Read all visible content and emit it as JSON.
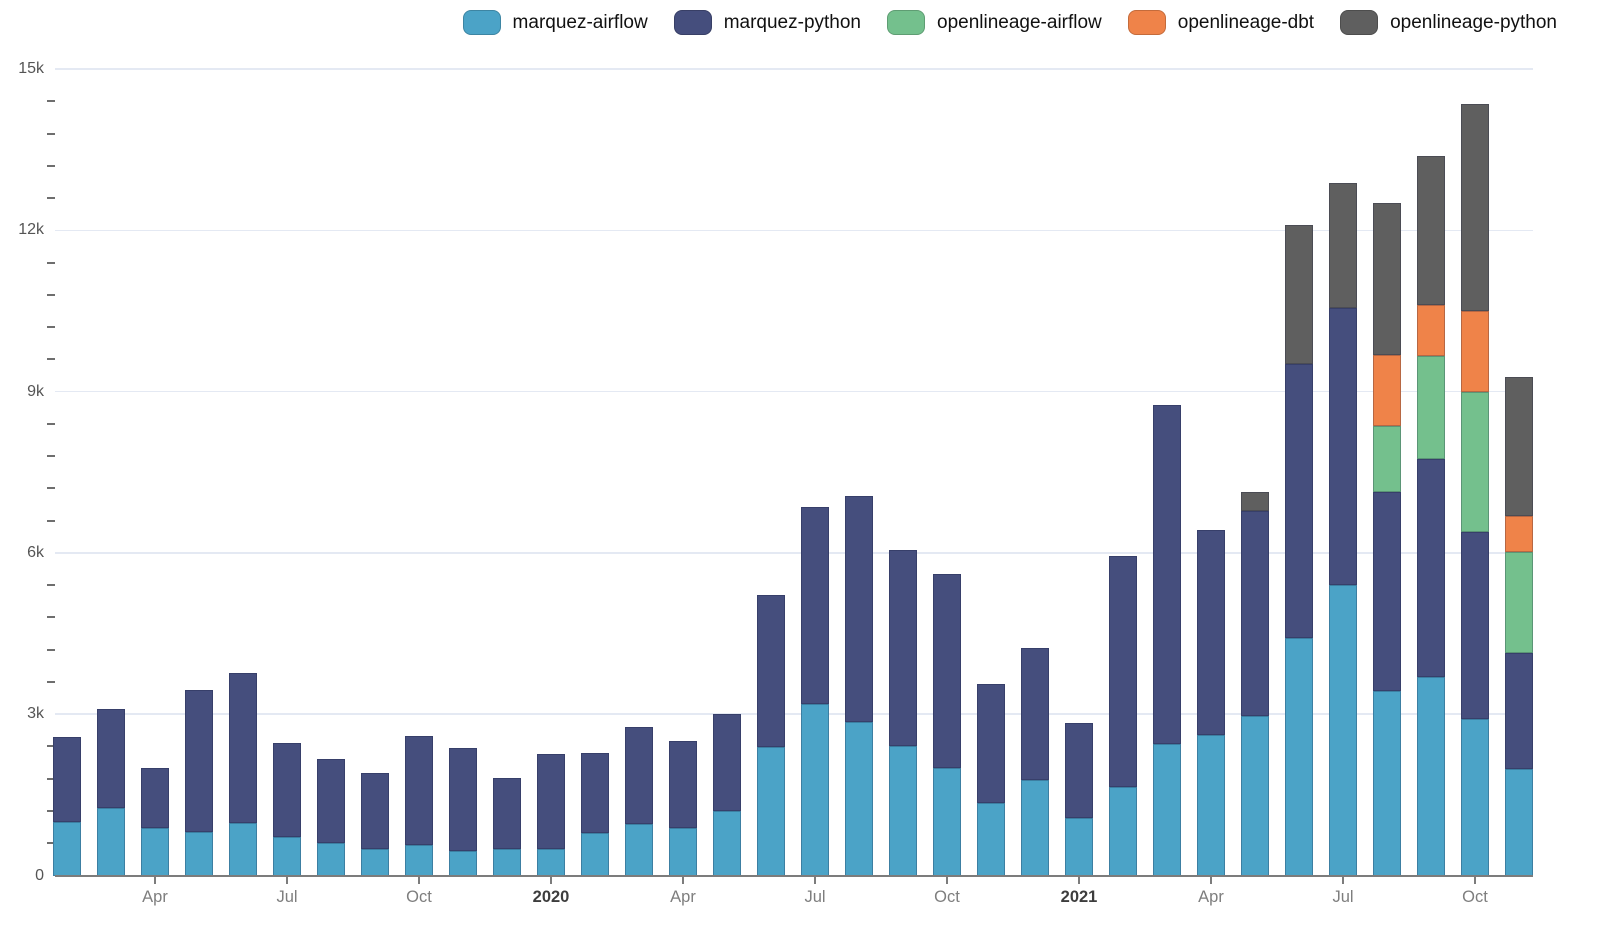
{
  "chart_data": {
    "type": "bar",
    "stacked": true,
    "title": "",
    "xlabel": "",
    "ylabel": "",
    "ylim": [
      0,
      15000
    ],
    "grid": "horizontal-major",
    "legend_position": "top-right",
    "y_major_ticks": [
      {
        "value": 0,
        "label": "0"
      },
      {
        "value": 3000,
        "label": "3k"
      },
      {
        "value": 6000,
        "label": "6k"
      },
      {
        "value": 9000,
        "label": "9k"
      },
      {
        "value": 12000,
        "label": "12k"
      },
      {
        "value": 15000,
        "label": "15k"
      }
    ],
    "y_minor_step": 600,
    "x_categories": [
      "Feb 2019",
      "Mar 2019",
      "Apr 2019",
      "May 2019",
      "Jun 2019",
      "Jul 2019",
      "Aug 2019",
      "Sep 2019",
      "Oct 2019",
      "Nov 2019",
      "Dec 2019",
      "Jan 2020",
      "Feb 2020",
      "Mar 2020",
      "Apr 2020",
      "May 2020",
      "Jun 2020",
      "Jul 2020",
      "Aug 2020",
      "Sep 2020",
      "Oct 2020",
      "Nov 2020",
      "Dec 2020",
      "Jan 2021",
      "Feb 2021",
      "Mar 2021",
      "Apr 2021",
      "May 2021",
      "Jun 2021",
      "Jul 2021",
      "Aug 2021",
      "Sep 2021",
      "Oct 2021",
      "Nov 2021"
    ],
    "x_ticks": [
      {
        "index": 2,
        "label": "Apr",
        "bold": false
      },
      {
        "index": 5,
        "label": "Jul",
        "bold": false
      },
      {
        "index": 8,
        "label": "Oct",
        "bold": false
      },
      {
        "index": 11,
        "label": "2020",
        "bold": true
      },
      {
        "index": 14,
        "label": "Apr",
        "bold": false
      },
      {
        "index": 17,
        "label": "Jul",
        "bold": false
      },
      {
        "index": 20,
        "label": "Oct",
        "bold": false
      },
      {
        "index": 23,
        "label": "2021",
        "bold": true
      },
      {
        "index": 26,
        "label": "Apr",
        "bold": false
      },
      {
        "index": 29,
        "label": "Jul",
        "bold": false
      },
      {
        "index": 32,
        "label": "Oct",
        "bold": false
      }
    ],
    "series": [
      {
        "name": "marquez-airflow",
        "color": "#4ba3c7",
        "values": [
          1000,
          1255,
          885,
          805,
          970,
          720,
          610,
          490,
          560,
          455,
          490,
          490,
          785,
          960,
          885,
          1200,
          2390,
          3190,
          2850,
          2410,
          1995,
          1345,
          1775,
          1075,
          1650,
          2440,
          2615,
          2975,
          4415,
          5405,
          3440,
          3685,
          2910,
          1980
        ]
      },
      {
        "name": "marquez-python",
        "color": "#454e7d",
        "values": [
          1575,
          1835,
          1120,
          2640,
          2805,
          1750,
          1555,
          1410,
          2035,
          1925,
          1320,
          1770,
          1500,
          1800,
          1620,
          1800,
          2830,
          3655,
          4200,
          3645,
          3610,
          2220,
          2450,
          1770,
          4300,
          6315,
          3815,
          3810,
          5105,
          5150,
          3685,
          4055,
          3470,
          2155
        ]
      },
      {
        "name": "openlineage-airflow",
        "color": "#74c08d",
        "values": [
          0,
          0,
          0,
          0,
          0,
          0,
          0,
          0,
          0,
          0,
          0,
          0,
          0,
          0,
          0,
          0,
          0,
          0,
          0,
          0,
          0,
          0,
          0,
          0,
          0,
          0,
          0,
          0,
          0,
          0,
          1230,
          1930,
          2610,
          1880
        ]
      },
      {
        "name": "openlineage-dbt",
        "color": "#ef8349",
        "values": [
          0,
          0,
          0,
          0,
          0,
          0,
          0,
          0,
          0,
          0,
          0,
          0,
          0,
          0,
          0,
          0,
          0,
          0,
          0,
          0,
          0,
          0,
          0,
          0,
          0,
          0,
          0,
          0,
          0,
          0,
          1335,
          945,
          1515,
          680
        ]
      },
      {
        "name": "openlineage-python",
        "color": "#5f5f5f",
        "values": [
          0,
          0,
          0,
          0,
          0,
          0,
          0,
          0,
          0,
          0,
          0,
          0,
          0,
          0,
          0,
          0,
          0,
          0,
          0,
          0,
          0,
          0,
          0,
          0,
          0,
          0,
          0,
          345,
          2585,
          2325,
          2820,
          2760,
          3845,
          2585
        ]
      }
    ]
  }
}
